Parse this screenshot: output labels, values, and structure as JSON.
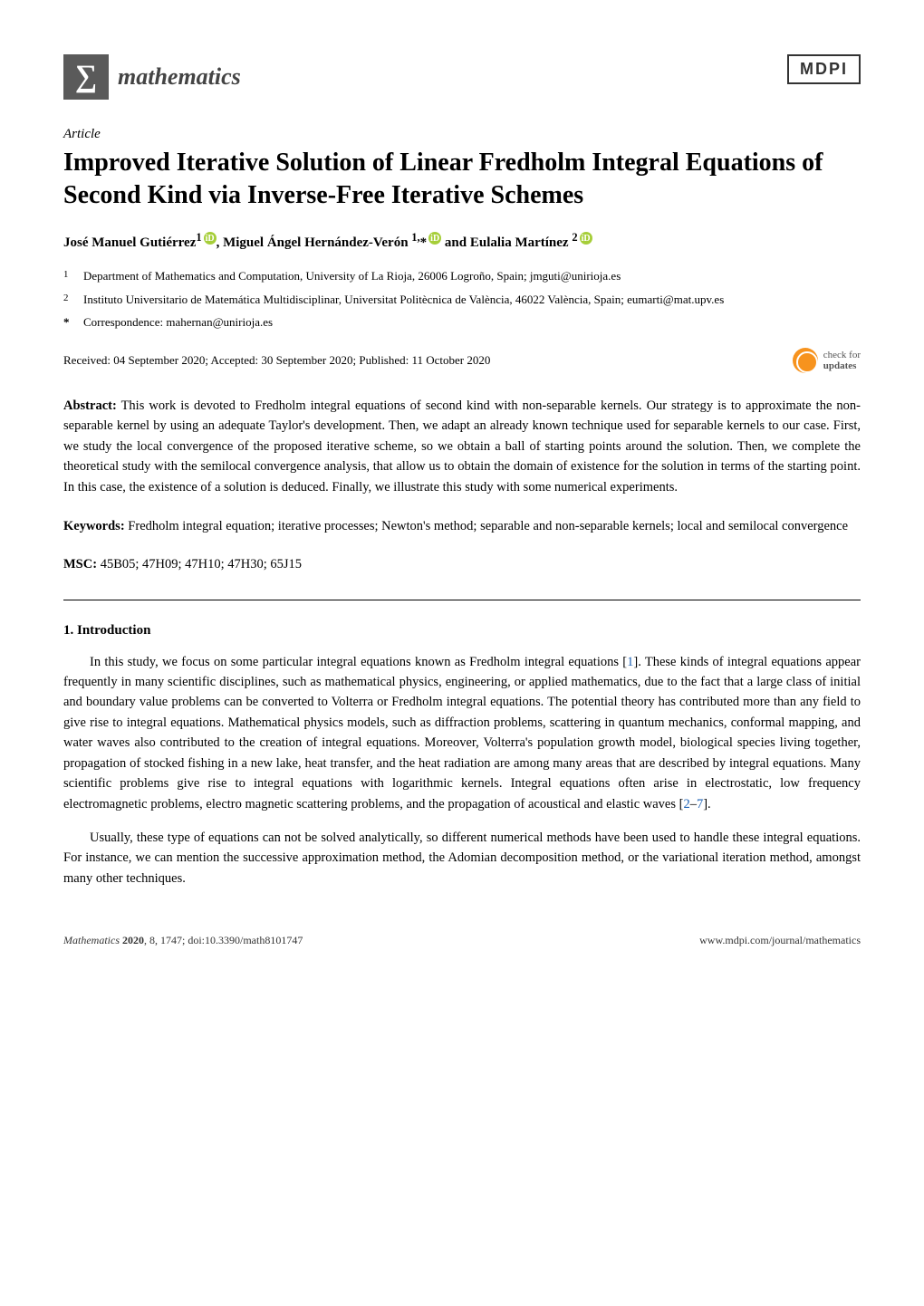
{
  "header": {
    "journal_name": "mathematics",
    "sigma": "∑",
    "publisher_logo": "MDPI"
  },
  "article_type": "Article",
  "title": "Improved Iterative Solution of Linear Fredholm Integral Equations of Second Kind via Inverse-Free Iterative Schemes",
  "authors_line": {
    "a1_name": "José Manuel Gutiérrez",
    "a1_sup": "1",
    "sep1": ", ",
    "a2_name": "Miguel Ángel Hernández-Verón",
    "a2_sup": "1,",
    "a2_ast": "*",
    "and": " and ",
    "a3_name": "Eulalia Martínez",
    "a3_sup": "2"
  },
  "affiliations": {
    "a1_num": "1",
    "a1_text": "Department of Mathematics and Computation, University of La Rioja, 26006 Logroño, Spain; jmguti@unirioja.es",
    "a2_num": "2",
    "a2_text": "Instituto Universitario de Matemática Multidisciplinar, Universitat Politècnica de València, 46022 València, Spain; eumarti@mat.upv.es",
    "corr_sym": "*",
    "corr_text": "Correspondence: mahernan@unirioja.es"
  },
  "dates": "Received: 04 September 2020; Accepted: 30 September 2020; Published: 11 October 2020",
  "check_updates": {
    "line1": "check for",
    "line2": "updates"
  },
  "abstract": {
    "label": "Abstract:",
    "text": " This work is devoted to Fredholm integral equations of second kind with non-separable kernels. Our strategy is to approximate the non-separable kernel by using an adequate Taylor's development. Then, we adapt an already known technique used for separable kernels to our case. First, we study the local convergence of the proposed iterative scheme, so we obtain a ball of starting points around the solution. Then, we complete the theoretical study with the semilocal convergence analysis, that allow us to obtain the domain of existence for the solution in terms of the starting point. In this case, the existence of a solution is deduced. Finally, we illustrate this study with some numerical experiments."
  },
  "keywords": {
    "label": "Keywords:",
    "text": " Fredholm integral equation; iterative processes; Newton's method; separable and non-separable kernels; local and semilocal convergence"
  },
  "msc": {
    "label": "MSC:",
    "text": " 45B05; 47H09; 47H10; 47H30; 65J15"
  },
  "section1": {
    "heading": "1. Introduction",
    "p1_a": "In this study, we focus on some particular integral equations known as Fredholm integral equations [",
    "p1_ref1": "1",
    "p1_b": "]. These kinds of integral equations appear frequently in many scientific disciplines, such as mathematical physics, engineering, or applied mathematics, due to the fact that a large class of initial and boundary value problems can be converted to Volterra or Fredholm integral equations. The potential theory has contributed more than any field to give rise to integral equations. Mathematical physics models, such as diffraction problems, scattering in quantum mechanics, conformal mapping, and water waves also contributed to the creation of integral equations. Moreover, Volterra's population growth model, biological species living together, propagation of stocked fishing in a new lake,  heat transfer, and the heat radiation are among many areas that are described by integral equations. Many scientific problems give rise to integral equations with logarithmic kernels. Integral equations often arise in electrostatic, low frequency electromagnetic problems, electro magnetic scattering problems, and the propagation of acoustical and elastic waves [",
    "p1_ref2": "2",
    "p1_dash": "–",
    "p1_ref3": "7",
    "p1_c": "].",
    "p2": "Usually, these type of equations can not be solved analytically, so different numerical methods have been used to handle these integral equations. For instance, we can mention the successive approximation method, the Adomian decomposition method, or the variational iteration method, amongst many other techniques."
  },
  "footer": {
    "left_italic": "Mathematics ",
    "left_bold": "2020",
    "left_rest": ", 8, 1747; doi:10.3390/math8101747",
    "right": "www.mdpi.com/journal/mathematics"
  }
}
